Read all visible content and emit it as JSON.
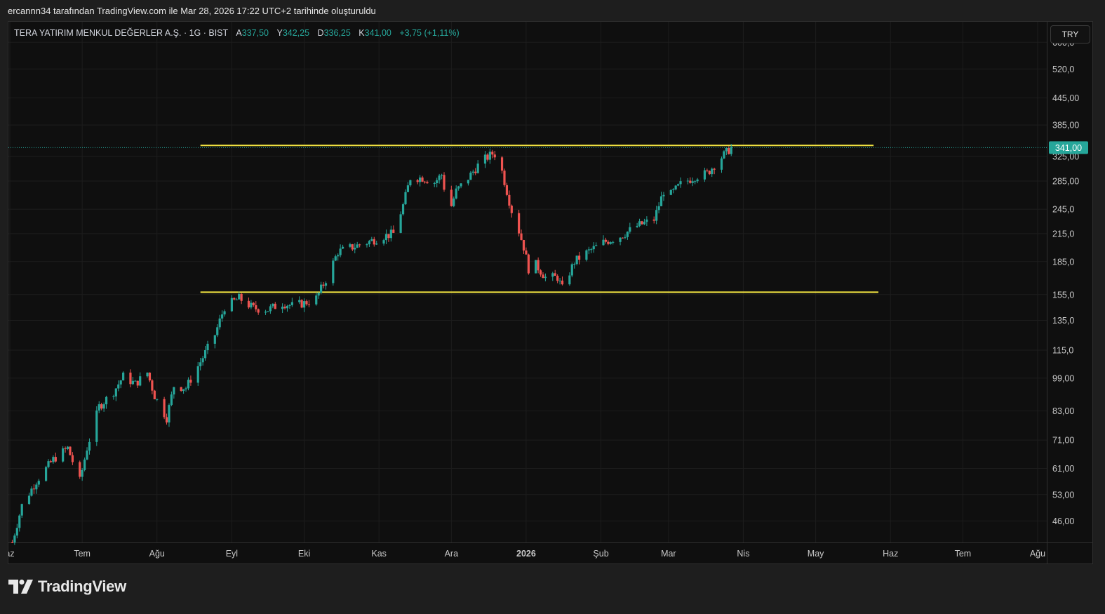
{
  "watermark": "ercannn34 tarafından TradingView.com ile Mar 28, 2026 17:22 UTC+2 tarihinde oluşturuldu",
  "legend": {
    "symbol": "TERA YATIRIM MENKUL DEĞERLER A.Ş. · 1G · BIST",
    "open_label": "A",
    "open": "337,50",
    "high_label": "Y",
    "high": "342,25",
    "low_label": "D",
    "low": "336,25",
    "close_label": "K",
    "close": "341,00",
    "change": "+3,75 (+1,11%)"
  },
  "currency": "TRY",
  "last_price_label": "341,00",
  "brand": "TradingView",
  "colors": {
    "up": "#26a69a",
    "down": "#ef5350",
    "level": "#f5e642",
    "background": "#0f0f0f"
  },
  "chart_data": {
    "type": "candlestick",
    "y_scale": "log",
    "ylim": [
      41,
      650
    ],
    "y_ticks": [
      "600,0",
      "520,0",
      "445,00",
      "385,00",
      "325,00",
      "285,00",
      "245,0",
      "215,0",
      "185,0",
      "155,0",
      "135,0",
      "115,0",
      "99,00",
      "83,00",
      "71,00",
      "61,00",
      "53,00",
      "46,00"
    ],
    "y_tick_values": [
      600,
      520,
      445,
      385,
      325,
      285,
      245,
      215,
      185,
      155,
      135,
      115,
      99,
      83,
      71,
      61,
      53,
      46
    ],
    "x_ticks": [
      {
        "label": "az",
        "date": "2025-06-01"
      },
      {
        "label": "Tem",
        "date": "2025-07-01"
      },
      {
        "label": "Ağu",
        "date": "2025-08-01"
      },
      {
        "label": "Eyl",
        "date": "2025-09-01"
      },
      {
        "label": "Eki",
        "date": "2025-10-01"
      },
      {
        "label": "Kas",
        "date": "2025-11-01"
      },
      {
        "label": "Ara",
        "date": "2025-12-01"
      },
      {
        "label": "2026",
        "date": "2026-01-01"
      },
      {
        "label": "Şub",
        "date": "2026-02-01"
      },
      {
        "label": "Mar",
        "date": "2026-03-01"
      },
      {
        "label": "Nis",
        "date": "2026-04-01"
      },
      {
        "label": "May",
        "date": "2026-05-01"
      },
      {
        "label": "Haz",
        "date": "2026-06-01"
      },
      {
        "label": "Tem",
        "date": "2026-07-01"
      },
      {
        "label": "Ağu",
        "date": "2026-08-01"
      }
    ],
    "close_path": [
      {
        "date": "2025-06-02",
        "close": 41
      },
      {
        "date": "2025-06-06",
        "close": 50
      },
      {
        "date": "2025-06-12",
        "close": 57
      },
      {
        "date": "2025-06-19",
        "close": 64
      },
      {
        "date": "2025-06-25",
        "close": 68
      },
      {
        "date": "2025-06-30",
        "close": 57
      },
      {
        "date": "2025-07-03",
        "close": 68
      },
      {
        "date": "2025-07-08",
        "close": 85
      },
      {
        "date": "2025-07-14",
        "close": 92
      },
      {
        "date": "2025-07-18",
        "close": 100
      },
      {
        "date": "2025-07-23",
        "close": 96
      },
      {
        "date": "2025-07-28",
        "close": 102
      },
      {
        "date": "2025-07-31",
        "close": 90
      },
      {
        "date": "2025-08-05",
        "close": 80
      },
      {
        "date": "2025-08-08",
        "close": 95
      },
      {
        "date": "2025-08-13",
        "close": 94
      },
      {
        "date": "2025-08-19",
        "close": 108
      },
      {
        "date": "2025-08-25",
        "close": 125
      },
      {
        "date": "2025-08-29",
        "close": 145
      },
      {
        "date": "2025-09-04",
        "close": 152
      },
      {
        "date": "2025-09-10",
        "close": 144
      },
      {
        "date": "2025-09-16",
        "close": 143
      },
      {
        "date": "2025-09-22",
        "close": 148
      },
      {
        "date": "2025-09-26",
        "close": 146
      },
      {
        "date": "2025-10-01",
        "close": 148
      },
      {
        "date": "2025-10-06",
        "close": 152
      },
      {
        "date": "2025-10-10",
        "close": 168
      },
      {
        "date": "2025-10-15",
        "close": 195
      },
      {
        "date": "2025-10-21",
        "close": 200
      },
      {
        "date": "2025-10-27",
        "close": 205
      },
      {
        "date": "2025-11-03",
        "close": 212
      },
      {
        "date": "2025-11-07",
        "close": 215
      },
      {
        "date": "2025-11-11",
        "close": 250
      },
      {
        "date": "2025-11-14",
        "close": 290
      },
      {
        "date": "2025-11-19",
        "close": 290
      },
      {
        "date": "2025-11-24",
        "close": 283
      },
      {
        "date": "2025-11-27",
        "close": 295
      },
      {
        "date": "2025-11-30",
        "close": 240
      },
      {
        "date": "2025-12-03",
        "close": 270
      },
      {
        "date": "2025-12-08",
        "close": 290
      },
      {
        "date": "2025-12-13",
        "close": 315
      },
      {
        "date": "2025-12-18",
        "close": 330
      },
      {
        "date": "2025-12-21",
        "close": 327
      },
      {
        "date": "2025-12-22",
        "close": 300
      },
      {
        "date": "2025-12-24",
        "close": 270
      },
      {
        "date": "2025-12-26",
        "close": 243
      },
      {
        "date": "2025-12-29",
        "close": 218
      },
      {
        "date": "2025-12-31",
        "close": 200
      },
      {
        "date": "2026-01-02",
        "close": 178
      },
      {
        "date": "2026-01-05",
        "close": 182
      },
      {
        "date": "2026-01-09",
        "close": 170
      },
      {
        "date": "2026-01-14",
        "close": 170
      },
      {
        "date": "2026-01-16",
        "close": 160
      },
      {
        "date": "2026-01-21",
        "close": 185
      },
      {
        "date": "2026-01-26",
        "close": 194
      },
      {
        "date": "2026-02-02",
        "close": 205
      },
      {
        "date": "2026-02-09",
        "close": 212
      },
      {
        "date": "2026-02-16",
        "close": 224
      },
      {
        "date": "2026-02-23",
        "close": 232
      },
      {
        "date": "2026-02-27",
        "close": 270
      },
      {
        "date": "2026-03-02",
        "close": 265
      },
      {
        "date": "2026-03-06",
        "close": 280
      },
      {
        "date": "2026-03-12",
        "close": 292
      },
      {
        "date": "2026-03-17",
        "close": 297
      },
      {
        "date": "2026-03-22",
        "close": 320
      },
      {
        "date": "2026-03-27",
        "close": 341
      }
    ],
    "horizontal_levels": [
      {
        "price": 345,
        "start": "2025-08-19",
        "end": "2026-05-25"
      },
      {
        "price": 157,
        "start": "2025-08-19",
        "end": "2026-05-27"
      }
    ],
    "last_price": 341.0,
    "grid": true
  }
}
